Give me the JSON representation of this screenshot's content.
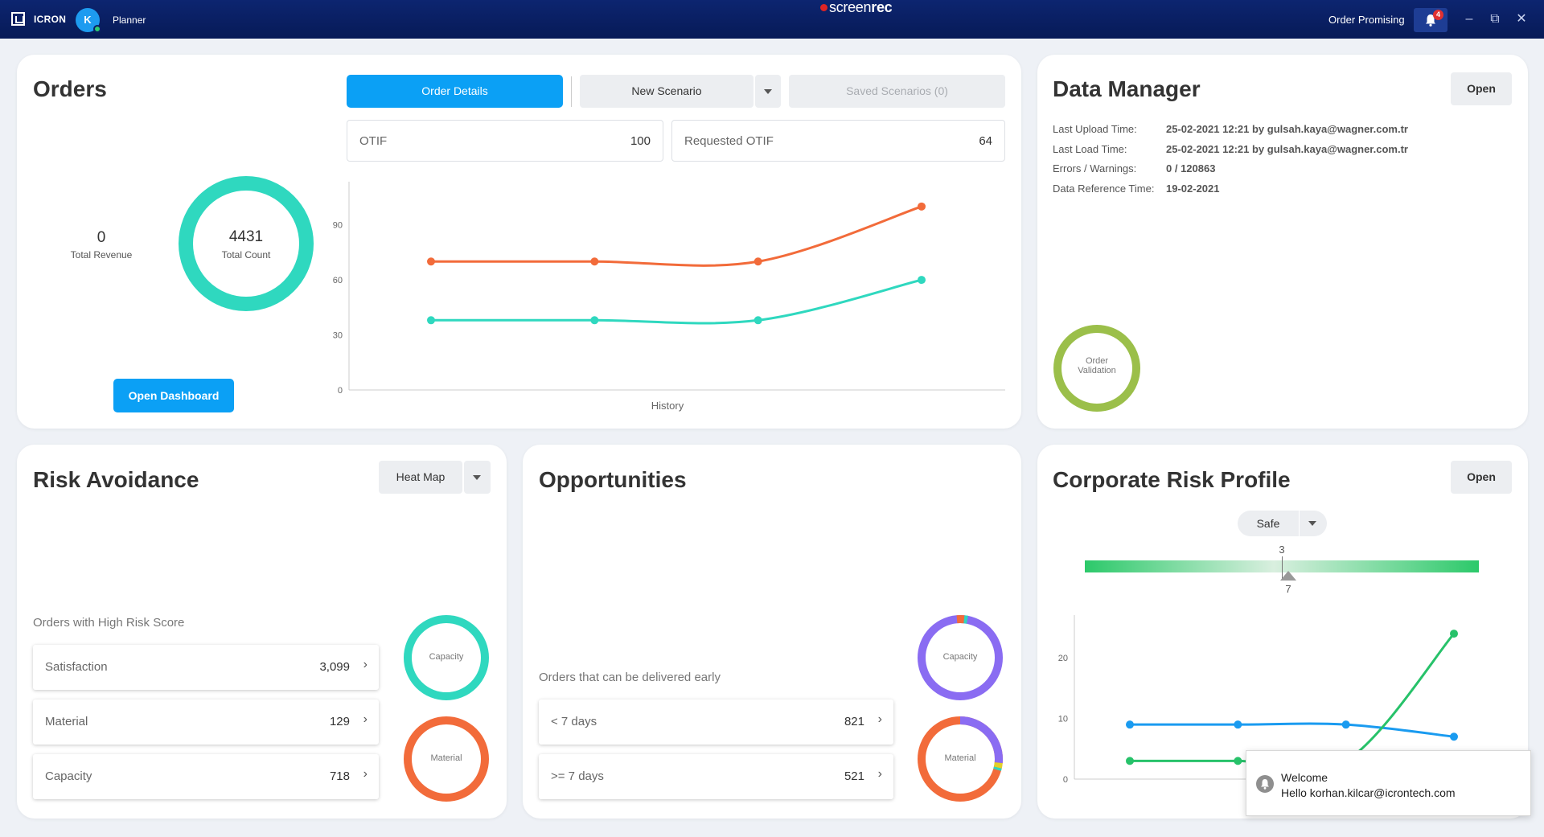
{
  "titlebar": {
    "brand": "ICRON",
    "avatar_initial": "K",
    "role": "Planner",
    "recorder": {
      "prefix": "screen",
      "suffix": "rec"
    },
    "app_name": "Order Promising",
    "notification_count": "4",
    "icons": [
      "icron-logo-icon",
      "bell-icon",
      "minimize-icon",
      "restore-icon",
      "close-icon"
    ]
  },
  "orders": {
    "title": "Orders",
    "tab_order_details": "Order Details",
    "scenario_select": "New Scenario",
    "saved_scenarios": "Saved Scenarios (0)",
    "total_revenue_value": "0",
    "total_revenue_label": "Total Revenue",
    "total_count_value": "4431",
    "total_count_label": "Total Count",
    "open_dashboard": "Open Dashboard",
    "otif_label": "OTIF",
    "otif_value": "100",
    "req_otif_label": "Requested OTIF",
    "req_otif_value": "64",
    "ring_color": "#2fd8bf"
  },
  "chart_data": [
    {
      "type": "line",
      "xlabel": "History",
      "ylabel": "",
      "ylim": [
        0,
        110
      ],
      "yticks": [
        0,
        30,
        60,
        90
      ],
      "x": [
        1,
        2,
        3,
        4
      ],
      "series": [
        {
          "color": "#f26b3a",
          "values": [
            70,
            70,
            70,
            100
          ]
        },
        {
          "color": "#2fd8bf",
          "values": [
            38,
            38,
            38,
            60
          ]
        }
      ],
      "grid": false
    },
    {
      "type": "line",
      "xlabel": "",
      "ylabel": "",
      "ylim": [
        0,
        26
      ],
      "yticks": [
        0,
        10,
        20
      ],
      "x": [
        1,
        2,
        3,
        4
      ],
      "series": [
        {
          "color": "#1a9bf0",
          "values": [
            9,
            9,
            9,
            7
          ]
        },
        {
          "color": "#27c26a",
          "values": [
            3,
            3,
            3,
            24
          ]
        }
      ],
      "grid": false
    }
  ],
  "data_manager": {
    "title": "Data Manager",
    "open_label": "Open",
    "rows": [
      {
        "label": "Last Upload Time:",
        "value": "25-02-2021 12:21 by gulsah.kaya@wagner.com.tr"
      },
      {
        "label": "Last Load Time:",
        "value": "25-02-2021 12:21 by gulsah.kaya@wagner.com.tr"
      },
      {
        "label": "Errors / Warnings:",
        "value": "0 / 120863"
      },
      {
        "label": "Data Reference Time:",
        "value": "19-02-2021"
      }
    ],
    "validation_label_1": "Order",
    "validation_label_2": "Validation",
    "validation_color": "#9bbf4a"
  },
  "risk": {
    "title": "Risk Avoidance",
    "view_select": "Heat Map",
    "subtitle": "Orders with High Risk Score",
    "items": [
      {
        "label": "Satisfaction",
        "value": "3,099"
      },
      {
        "label": "Material",
        "value": "129"
      },
      {
        "label": "Capacity",
        "value": "718"
      }
    ],
    "ring_capacity": "Capacity",
    "ring_material": "Material"
  },
  "opportunities": {
    "title": "Opportunities",
    "subtitle": "Orders that can be delivered early",
    "items": [
      {
        "label": "< 7 days",
        "value": "821"
      },
      {
        "label": ">= 7 days",
        "value": "521"
      }
    ],
    "ring_capacity": "Capacity",
    "ring_material": "Material"
  },
  "corporate": {
    "title": "Corporate Risk Profile",
    "open_label": "Open",
    "status_select": "Safe",
    "scale_top": "3",
    "scale_bottom": "7"
  },
  "toast": {
    "title": "Welcome",
    "message": "Hello korhan.kilcar@icrontech.com"
  }
}
